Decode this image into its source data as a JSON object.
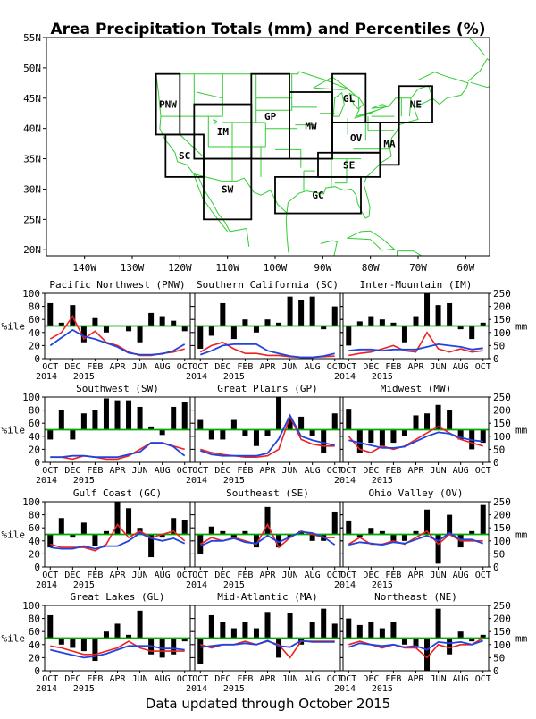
{
  "title": "Area Precipitation Totals (mm) and Percentiles (%)",
  "footer": "Data updated through October 2015",
  "colors": {
    "bars": "#000000",
    "pct_line": "#ee2222",
    "mm_line": "#2244dd",
    "ref_line": "#00aa00",
    "map_lines": "#33cc33",
    "region_label": "#2244dd"
  },
  "map": {
    "lon_ticks": [
      "140W",
      "130W",
      "120W",
      "110W",
      "100W",
      "90W",
      "80W",
      "70W",
      "60W"
    ],
    "lat_ticks": [
      "55N",
      "50N",
      "45N",
      "40N",
      "35N",
      "30N",
      "25N",
      "20N"
    ],
    "lon_range": [
      -148,
      -55
    ],
    "lat_range": [
      19,
      55
    ],
    "regions": [
      {
        "label": "PNW",
        "lon": [
          -125,
          -120
        ],
        "lat": [
          39,
          49
        ]
      },
      {
        "label": "SC",
        "lon": [
          -123,
          -115
        ],
        "lat": [
          32,
          39
        ]
      },
      {
        "label": "IM",
        "lon": [
          -117,
          -105
        ],
        "lat": [
          35,
          44
        ]
      },
      {
        "label": "SW",
        "lon": [
          -115,
          -105
        ],
        "lat": [
          25,
          35
        ]
      },
      {
        "label": "GP",
        "lon": [
          -105,
          -97
        ],
        "lat": [
          35,
          49
        ]
      },
      {
        "label": "MW",
        "lon": [
          -97,
          -88
        ],
        "lat": [
          35,
          46
        ]
      },
      {
        "label": "GL",
        "lon": [
          -88,
          -81
        ],
        "lat": [
          41,
          49
        ]
      },
      {
        "label": "OV",
        "lon": [
          -88,
          -78
        ],
        "lat": [
          36,
          41
        ]
      },
      {
        "label": "MA",
        "lon": [
          -78,
          -74
        ],
        "lat": [
          34,
          41
        ]
      },
      {
        "label": "NE",
        "lon": [
          -74,
          -67
        ],
        "lat": [
          41,
          47
        ]
      },
      {
        "label": "SE",
        "lon": [
          -91,
          -78
        ],
        "lat": [
          32,
          36
        ]
      },
      {
        "label": "GC",
        "lon": [
          -100,
          -82
        ],
        "lat": [
          26,
          32
        ]
      }
    ]
  },
  "axes": {
    "pct_label": "%ile",
    "mm_label": "mm",
    "pct_ticks": [
      "0",
      "20",
      "40",
      "60",
      "80",
      "100"
    ],
    "mm_ticks": [
      "0",
      "50",
      "100",
      "150",
      "200",
      "250"
    ],
    "month_labels": [
      "OCT",
      "DEC",
      "FEB",
      "APR",
      "JUN",
      "AUG",
      "OCT"
    ],
    "year_labels": [
      "2014",
      "2015"
    ]
  },
  "chart_data": [
    {
      "type": "bar",
      "title": "Pacific Northwest (PNW)",
      "categories": [
        "Oct 2014",
        "Nov",
        "Dec",
        "Jan 2015",
        "Feb",
        "Mar",
        "Apr",
        "May",
        "Jun",
        "Jul",
        "Aug",
        "Sep",
        "Oct 2015"
      ],
      "percentile": [
        85,
        55,
        82,
        25,
        62,
        40,
        50,
        42,
        25,
        70,
        65,
        58,
        42
      ],
      "pct_line": [
        30,
        40,
        65,
        30,
        42,
        25,
        20,
        10,
        5,
        5,
        8,
        10,
        15
      ],
      "mm_line": [
        50,
        80,
        110,
        85,
        75,
        60,
        45,
        22,
        15,
        15,
        18,
        30,
        55
      ],
      "ylim_pct": [
        0,
        100
      ],
      "ylim_mm": [
        0,
        250
      ],
      "ref_pct": 50
    },
    {
      "type": "bar",
      "title": "Southern California (SC)",
      "categories": [
        "Oct 2014",
        "Nov",
        "Dec",
        "Jan 2015",
        "Feb",
        "Mar",
        "Apr",
        "May",
        "Jun",
        "Jul",
        "Aug",
        "Sep",
        "Oct 2015"
      ],
      "percentile": [
        15,
        35,
        85,
        30,
        60,
        40,
        60,
        55,
        95,
        90,
        95,
        45,
        80
      ],
      "pct_line": [
        10,
        20,
        25,
        15,
        8,
        8,
        5,
        5,
        3,
        2,
        2,
        3,
        4
      ],
      "mm_line": [
        15,
        30,
        50,
        55,
        55,
        55,
        30,
        20,
        10,
        5,
        5,
        10,
        20
      ],
      "ylim_pct": [
        0,
        100
      ],
      "ylim_mm": [
        0,
        250
      ],
      "ref_pct": 50
    },
    {
      "type": "bar",
      "title": "Inter-Mountain (IM)",
      "categories": [
        "Oct 2014",
        "Nov",
        "Dec",
        "Jan 2015",
        "Feb",
        "Mar",
        "Apr",
        "May",
        "Jun",
        "Jul",
        "Aug",
        "Sep",
        "Oct 2015"
      ],
      "percentile": [
        20,
        57,
        65,
        60,
        55,
        25,
        65,
        100,
        82,
        85,
        45,
        30,
        55
      ],
      "pct_line": [
        5,
        8,
        10,
        15,
        20,
        12,
        10,
        40,
        15,
        10,
        15,
        10,
        12
      ],
      "mm_line": [
        30,
        35,
        35,
        30,
        35,
        35,
        35,
        45,
        55,
        50,
        45,
        35,
        40
      ],
      "ylim_pct": [
        0,
        100
      ],
      "ylim_mm": [
        0,
        250
      ],
      "ref_pct": 50
    },
    {
      "type": "bar",
      "title": "Southwest (SW)",
      "categories": [
        "Oct 2014",
        "Nov",
        "Dec",
        "Jan 2015",
        "Feb",
        "Mar",
        "Apr",
        "May",
        "Jun",
        "Jul",
        "Aug",
        "Sep",
        "Oct 2015"
      ],
      "percentile": [
        35,
        80,
        35,
        75,
        80,
        98,
        95,
        95,
        85,
        55,
        42,
        85,
        92
      ],
      "pct_line": [
        8,
        8,
        5,
        10,
        8,
        5,
        5,
        10,
        20,
        30,
        30,
        25,
        20
      ],
      "mm_line": [
        20,
        20,
        25,
        25,
        20,
        20,
        20,
        30,
        40,
        75,
        75,
        60,
        25
      ],
      "ylim_pct": [
        0,
        100
      ],
      "ylim_mm": [
        0,
        250
      ],
      "ref_pct": 50
    },
    {
      "type": "bar",
      "title": "Great Plains (GP)",
      "categories": [
        "Oct 2014",
        "Nov",
        "Dec",
        "Jan 2015",
        "Feb",
        "Mar",
        "Apr",
        "May",
        "Jun",
        "Jul",
        "Aug",
        "Sep",
        "Oct 2015"
      ],
      "percentile": [
        65,
        35,
        35,
        65,
        40,
        25,
        40,
        100,
        68,
        70,
        40,
        15,
        75
      ],
      "pct_line": [
        20,
        15,
        12,
        10,
        8,
        8,
        10,
        20,
        70,
        35,
        28,
        25,
        25
      ],
      "mm_line": [
        45,
        30,
        25,
        25,
        25,
        25,
        35,
        90,
        180,
        100,
        85,
        75,
        65
      ],
      "ylim_pct": [
        0,
        100
      ],
      "ylim_mm": [
        0,
        250
      ],
      "ref_pct": 50
    },
    {
      "type": "bar",
      "title": "Midwest (MW)",
      "categories": [
        "Oct 2014",
        "Nov",
        "Dec",
        "Jan 2015",
        "Feb",
        "Mar",
        "Apr",
        "May",
        "Jun",
        "Jul",
        "Aug",
        "Sep",
        "Oct 2015"
      ],
      "percentile": [
        82,
        15,
        30,
        25,
        30,
        40,
        72,
        75,
        88,
        80,
        35,
        20,
        30
      ],
      "pct_line": [
        40,
        20,
        15,
        25,
        20,
        25,
        35,
        45,
        55,
        45,
        35,
        30,
        25
      ],
      "mm_line": [
        85,
        75,
        65,
        55,
        55,
        60,
        80,
        100,
        115,
        110,
        95,
        85,
        80
      ],
      "ylim_pct": [
        0,
        100
      ],
      "ylim_mm": [
        0,
        250
      ],
      "ref_pct": 50
    },
    {
      "type": "bar",
      "title": "Gulf Coast (GC)",
      "categories": [
        "Oct 2014",
        "Nov",
        "Dec",
        "Jan 2015",
        "Feb",
        "Mar",
        "Apr",
        "May",
        "Jun",
        "Jul",
        "Aug",
        "Sep",
        "Oct 2015"
      ],
      "percentile": [
        30,
        75,
        45,
        68,
        32,
        55,
        100,
        90,
        60,
        15,
        45,
        75,
        72
      ],
      "pct_line": [
        35,
        30,
        30,
        30,
        25,
        35,
        65,
        45,
        55,
        45,
        50,
        55,
        40
      ],
      "mm_line": [
        75,
        70,
        70,
        80,
        70,
        80,
        80,
        100,
        130,
        110,
        100,
        110,
        90
      ],
      "ylim_pct": [
        0,
        100
      ],
      "ylim_mm": [
        0,
        250
      ],
      "ref_pct": 50
    },
    {
      "type": "bar",
      "title": "Southeast (SE)",
      "categories": [
        "Oct 2014",
        "Nov",
        "Dec",
        "Jan 2015",
        "Feb",
        "Mar",
        "Apr",
        "May",
        "Jun",
        "Jul",
        "Aug",
        "Sep",
        "Oct 2015"
      ],
      "percentile": [
        20,
        62,
        55,
        45,
        55,
        30,
        92,
        30,
        45,
        55,
        40,
        40,
        85
      ],
      "pct_line": [
        35,
        45,
        40,
        45,
        40,
        35,
        65,
        30,
        45,
        55,
        50,
        45,
        45
      ],
      "mm_line": [
        80,
        100,
        100,
        110,
        95,
        90,
        120,
        95,
        115,
        135,
        130,
        115,
        85
      ],
      "ylim_pct": [
        0,
        100
      ],
      "ylim_mm": [
        0,
        250
      ],
      "ref_pct": 50
    },
    {
      "type": "bar",
      "title": "Ohio Valley (OV)",
      "categories": [
        "Oct 2014",
        "Nov",
        "Dec",
        "Jan 2015",
        "Feb",
        "Mar",
        "Apr",
        "May",
        "Jun",
        "Jul",
        "Aug",
        "Sep",
        "Oct 2015"
      ],
      "percentile": [
        70,
        45,
        60,
        55,
        40,
        40,
        55,
        88,
        5,
        80,
        30,
        55,
        95
      ],
      "pct_line": [
        35,
        45,
        35,
        35,
        40,
        35,
        45,
        55,
        35,
        50,
        40,
        40,
        40
      ],
      "mm_line": [
        85,
        95,
        90,
        85,
        95,
        90,
        105,
        120,
        100,
        130,
        105,
        105,
        90
      ],
      "ylim_pct": [
        0,
        100
      ],
      "ylim_mm": [
        0,
        250
      ],
      "ref_pct": 50
    },
    {
      "type": "bar",
      "title": "Great Lakes (GL)",
      "categories": [
        "Oct 2014",
        "Nov",
        "Dec",
        "Jan 2015",
        "Feb",
        "Mar",
        "Apr",
        "May",
        "Jun",
        "Jul",
        "Aug",
        "Sep",
        "Oct 2015"
      ],
      "percentile": [
        85,
        40,
        35,
        30,
        15,
        60,
        72,
        55,
        92,
        25,
        20,
        25,
        45
      ],
      "pct_line": [
        38,
        35,
        30,
        25,
        25,
        30,
        35,
        45,
        35,
        30,
        30,
        30,
        30
      ],
      "mm_line": [
        80,
        70,
        60,
        50,
        55,
        65,
        80,
        95,
        95,
        95,
        85,
        85,
        80
      ],
      "ylim_pct": [
        0,
        100
      ],
      "ylim_mm": [
        0,
        250
      ],
      "ref_pct": 50
    },
    {
      "type": "bar",
      "title": "Mid-Atlantic (MA)",
      "categories": [
        "Oct 2014",
        "Nov",
        "Dec",
        "Jan 2015",
        "Feb",
        "Mar",
        "Apr",
        "May",
        "Jun",
        "Jul",
        "Aug",
        "Sep",
        "Oct 2015"
      ],
      "percentile": [
        10,
        85,
        75,
        65,
        75,
        65,
        90,
        20,
        88,
        40,
        75,
        95,
        72
      ],
      "pct_line": [
        40,
        35,
        40,
        40,
        45,
        40,
        45,
        40,
        20,
        45,
        45,
        45,
        45
      ],
      "mm_line": [
        90,
        95,
        100,
        100,
        105,
        100,
        115,
        95,
        90,
        115,
        110,
        110,
        110
      ],
      "ylim_pct": [
        0,
        100
      ],
      "ylim_mm": [
        0,
        250
      ],
      "ref_pct": 50
    },
    {
      "type": "bar",
      "title": "Northeast (NE)",
      "categories": [
        "Oct 2014",
        "Nov",
        "Dec",
        "Jan 2015",
        "Feb",
        "Mar",
        "Apr",
        "May",
        "Jun",
        "Jul",
        "Aug",
        "Sep",
        "Oct 2015"
      ],
      "percentile": [
        80,
        70,
        75,
        65,
        75,
        40,
        35,
        0,
        95,
        25,
        60,
        45,
        55
      ],
      "pct_line": [
        40,
        45,
        40,
        35,
        40,
        35,
        35,
        20,
        40,
        35,
        40,
        40,
        50
      ],
      "mm_line": [
        90,
        105,
        100,
        95,
        100,
        90,
        95,
        80,
        110,
        105,
        110,
        100,
        115
      ],
      "ylim_pct": [
        0,
        100
      ],
      "ylim_mm": [
        0,
        250
      ],
      "ref_pct": 50
    }
  ]
}
